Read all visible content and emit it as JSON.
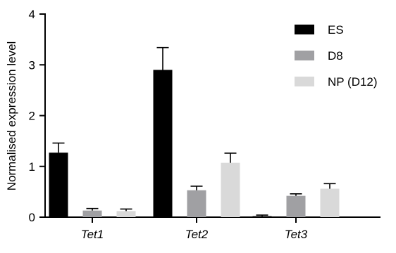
{
  "chart_data": {
    "type": "bar",
    "title": "",
    "xlabel": "",
    "ylabel": "Normalised expression level",
    "ylim": [
      0,
      4
    ],
    "yticks": [
      0,
      1,
      2,
      3,
      4
    ],
    "grid": false,
    "legend_position": "top-right",
    "categories": [
      "Tet1",
      "Tet2",
      "Tet3"
    ],
    "series": [
      {
        "name": "ES",
        "color": "#000000",
        "values": [
          1.27,
          2.9,
          0.02
        ],
        "errors": [
          0.19,
          0.44,
          0.02
        ]
      },
      {
        "name": "D8",
        "color": "#a0a0a3",
        "values": [
          0.13,
          0.53,
          0.42
        ],
        "errors": [
          0.04,
          0.08,
          0.04
        ]
      },
      {
        "name": "NP (D12)",
        "color": "#d9d9d9",
        "values": [
          0.12,
          1.07,
          0.56
        ],
        "errors": [
          0.04,
          0.19,
          0.1
        ]
      }
    ]
  }
}
